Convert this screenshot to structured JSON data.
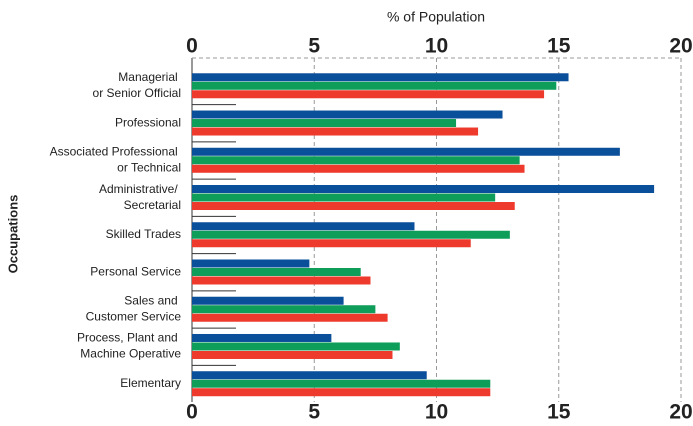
{
  "chart_data": {
    "type": "bar",
    "orientation": "horizontal",
    "x_label": "% of Population",
    "y_label": "Occupations",
    "categories": [
      "Managerial\nor Senior Official",
      "Professional",
      "Associated Professional\nor Technical",
      "Administrative/\nSecretarial",
      "Skilled Trades",
      "Personal Service",
      "Sales and\nCustomer Service",
      "Process, Plant and\nMachine Operative",
      "Elementary"
    ],
    "series": [
      {
        "color": "#0a4f9a",
        "values": [
          15.4,
          12.7,
          17.5,
          18.9,
          9.1,
          4.8,
          6.2,
          5.7,
          9.6
        ]
      },
      {
        "color": "#0f9e5a",
        "values": [
          14.9,
          10.8,
          13.4,
          12.4,
          13.0,
          6.9,
          7.5,
          8.5,
          12.2
        ]
      },
      {
        "color": "#ee3a2c",
        "values": [
          14.4,
          11.7,
          13.6,
          13.2,
          11.4,
          7.3,
          8.0,
          8.2,
          12.2
        ]
      }
    ],
    "xlim": [
      0,
      20
    ],
    "xticks": [
      0,
      5,
      10,
      15,
      20
    ],
    "grid": true
  }
}
